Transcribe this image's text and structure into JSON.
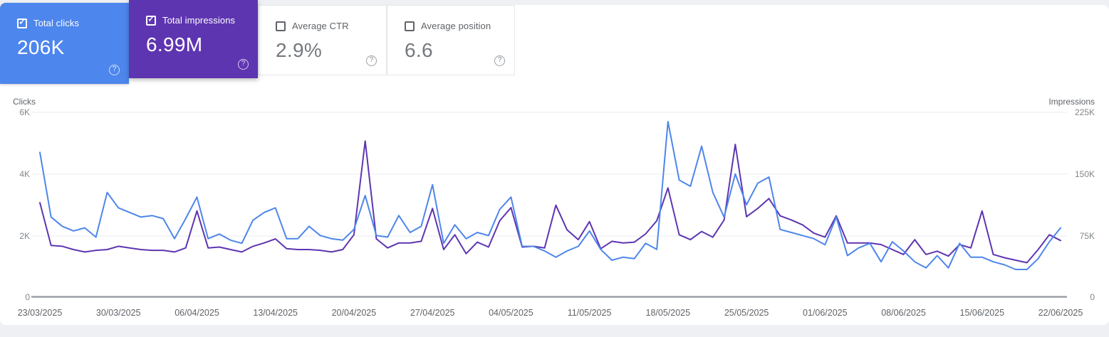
{
  "cards": [
    {
      "label": "Total clicks",
      "value": "206K",
      "checked": true,
      "selected": true,
      "bg": "#4d86ec"
    },
    {
      "label": "Total impressions",
      "value": "6.99M",
      "checked": true,
      "selected": true,
      "bg": "#5e35b1"
    },
    {
      "label": "Average CTR",
      "value": "2.9%",
      "checked": false,
      "selected": false,
      "bg": "#ffffff"
    },
    {
      "label": "Average position",
      "value": "6.6",
      "checked": false,
      "selected": false,
      "bg": "#ffffff"
    }
  ],
  "icons": {
    "checkmark": "✓",
    "help": "?"
  },
  "chart_data": {
    "type": "line",
    "start_date": "23/03/2025",
    "end_date": "22/06/2025",
    "x_tick_labels": [
      "23/03/2025",
      "30/03/2025",
      "06/04/2025",
      "13/04/2025",
      "20/04/2025",
      "27/04/2025",
      "04/05/2025",
      "11/05/2025",
      "18/05/2025",
      "25/05/2025",
      "01/06/2025",
      "08/06/2025",
      "15/06/2025",
      "22/06/2025"
    ],
    "left_axis": {
      "title": "Clicks",
      "ticks": [
        "6K",
        "4K",
        "2K",
        "0"
      ],
      "max": 6000,
      "min": 0
    },
    "right_axis": {
      "title": "Impressions",
      "ticks": [
        "225K",
        "150K",
        "75K",
        "0"
      ],
      "max": 225000,
      "min": 0
    },
    "grid": true,
    "legend_position": "none",
    "series": [
      {
        "name": "Total clicks",
        "axis": "left",
        "color": "#4e86ec",
        "values": [
          4700,
          2600,
          2300,
          2150,
          2250,
          1950,
          3400,
          2900,
          2750,
          2600,
          2650,
          2550,
          1900,
          2550,
          3250,
          1900,
          2050,
          1850,
          1750,
          2500,
          2750,
          2900,
          1900,
          1900,
          2300,
          2000,
          1900,
          1850,
          2200,
          3300,
          2000,
          1950,
          2650,
          2100,
          2300,
          3650,
          1750,
          2350,
          1900,
          2100,
          2000,
          2850,
          3250,
          1650,
          1650,
          1500,
          1300,
          1500,
          1650,
          2150,
          1550,
          1200,
          1300,
          1250,
          1750,
          1550,
          5700,
          3800,
          3600,
          4900,
          3400,
          2600,
          4000,
          3000,
          3700,
          3900,
          2200,
          2100,
          2000,
          1900,
          1700,
          2600,
          1350,
          1600,
          1750,
          1150,
          1800,
          1500,
          1150,
          950,
          1350,
          950,
          1750,
          1300,
          1300,
          1150,
          1050,
          900,
          900,
          1250,
          1800,
          2250
        ]
      },
      {
        "name": "Total impressions",
        "axis": "right",
        "color": "#5e35b1",
        "values": [
          115000,
          63000,
          62000,
          58000,
          55000,
          57000,
          58000,
          62000,
          60000,
          58000,
          57000,
          57000,
          55000,
          60000,
          105000,
          60000,
          61000,
          58000,
          55000,
          62000,
          66000,
          71000,
          59000,
          58000,
          58000,
          57000,
          55000,
          58000,
          76000,
          190000,
          71000,
          60000,
          66000,
          66000,
          68000,
          108000,
          58000,
          76000,
          53000,
          67000,
          61000,
          93000,
          109000,
          61000,
          62000,
          60000,
          112000,
          82000,
          70000,
          92000,
          59000,
          68000,
          66000,
          67000,
          77000,
          93000,
          133000,
          76000,
          70000,
          80000,
          73000,
          94000,
          186000,
          98000,
          108000,
          120000,
          99000,
          94000,
          88000,
          78000,
          73000,
          99000,
          66000,
          66000,
          66000,
          64000,
          58000,
          52000,
          70000,
          52000,
          56000,
          50000,
          64000,
          60000,
          105000,
          52000,
          48000,
          45000,
          42000,
          58000,
          76000,
          69000
        ]
      }
    ]
  }
}
